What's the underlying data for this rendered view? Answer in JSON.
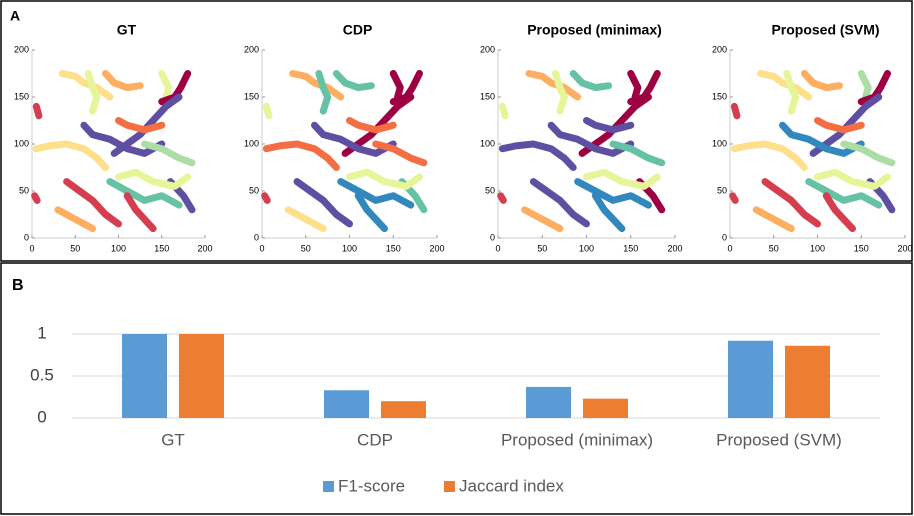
{
  "panel_labels": [
    "A",
    "B"
  ],
  "chart_data": [
    {
      "type": "line",
      "title": "GT",
      "xlim": [
        0,
        200
      ],
      "ylim": [
        0,
        200
      ],
      "xticks": [
        0,
        50,
        100,
        150,
        200
      ],
      "yticks": [
        0,
        50,
        100,
        150,
        200
      ],
      "series": [
        {
          "color": "#fee08b",
          "x": [
            35,
            50,
            60,
            75,
            90
          ],
          "y": [
            175,
            172,
            165,
            160,
            150
          ]
        },
        {
          "color": "#e6f598",
          "x": [
            65,
            70,
            75,
            70
          ],
          "y": [
            175,
            160,
            150,
            135
          ]
        },
        {
          "color": "#fdae61",
          "x": [
            85,
            95,
            110,
            125
          ],
          "y": [
            175,
            165,
            160,
            162
          ]
        },
        {
          "color": "#e6f598",
          "x": [
            150,
            158,
            155
          ],
          "y": [
            175,
            160,
            150
          ]
        },
        {
          "color": "#9e0142",
          "x": [
            180,
            172,
            165,
            150
          ],
          "y": [
            175,
            160,
            150,
            145
          ]
        },
        {
          "color": "#5e4fa2",
          "x": [
            170,
            155,
            140,
            125,
            110,
            95
          ],
          "y": [
            150,
            140,
            125,
            110,
            100,
            90
          ]
        },
        {
          "color": "#f46d43",
          "x": [
            100,
            110,
            130,
            150
          ],
          "y": [
            125,
            120,
            115,
            120
          ]
        },
        {
          "color": "#fee08b",
          "x": [
            5,
            20,
            40,
            60,
            75,
            85
          ],
          "y": [
            95,
            98,
            100,
            95,
            85,
            75
          ]
        },
        {
          "color": "#5e4fa2",
          "x": [
            60,
            70,
            90,
            110,
            130,
            150
          ],
          "y": [
            120,
            110,
            105,
            95,
            90,
            100
          ]
        },
        {
          "color": "#abdda4",
          "x": [
            130,
            150,
            170,
            185
          ],
          "y": [
            100,
            95,
            85,
            80
          ]
        },
        {
          "color": "#d53e4f",
          "x": [
            40,
            55,
            70,
            85,
            100
          ],
          "y": [
            60,
            50,
            40,
            25,
            15
          ]
        },
        {
          "color": "#66c2a5",
          "x": [
            90,
            110,
            130,
            150,
            170
          ],
          "y": [
            60,
            50,
            40,
            45,
            35
          ]
        },
        {
          "color": "#5e4fa2",
          "x": [
            160,
            175,
            185
          ],
          "y": [
            60,
            45,
            30
          ]
        },
        {
          "color": "#d53e4f",
          "x": [
            110,
            120,
            130,
            140
          ],
          "y": [
            45,
            30,
            20,
            10
          ]
        },
        {
          "color": "#d53e4f",
          "x": [
            3,
            6
          ],
          "y": [
            45,
            40
          ]
        },
        {
          "color": "#d53e4f",
          "x": [
            5,
            8
          ],
          "y": [
            140,
            130
          ]
        },
        {
          "color": "#e6f598",
          "x": [
            100,
            120,
            140,
            165,
            180
          ],
          "y": [
            65,
            70,
            60,
            55,
            65
          ]
        },
        {
          "color": "#fdae61",
          "x": [
            30,
            50,
            70
          ],
          "y": [
            30,
            20,
            10
          ]
        }
      ]
    },
    {
      "type": "line",
      "title": "CDP",
      "xlim": [
        0,
        200
      ],
      "ylim": [
        0,
        200
      ],
      "xticks": [
        0,
        50,
        100,
        150,
        200
      ],
      "yticks": [
        0,
        50,
        100,
        150,
        200
      ],
      "series": [
        {
          "color": "#fdae61",
          "x": [
            35,
            50,
            60,
            75,
            90
          ],
          "y": [
            175,
            172,
            165,
            160,
            150
          ]
        },
        {
          "color": "#66c2a5",
          "x": [
            65,
            70,
            75,
            70
          ],
          "y": [
            175,
            160,
            150,
            135
          ]
        },
        {
          "color": "#66c2a5",
          "x": [
            85,
            95,
            110,
            125
          ],
          "y": [
            175,
            165,
            160,
            162
          ]
        },
        {
          "color": "#9e0142",
          "x": [
            150,
            158,
            155
          ],
          "y": [
            175,
            160,
            150
          ]
        },
        {
          "color": "#9e0142",
          "x": [
            180,
            172,
            165,
            150
          ],
          "y": [
            175,
            160,
            150,
            145
          ]
        },
        {
          "color": "#9e0142",
          "x": [
            170,
            155,
            140,
            125,
            110,
            95
          ],
          "y": [
            150,
            140,
            125,
            110,
            100,
            90
          ]
        },
        {
          "color": "#f46d43",
          "x": [
            100,
            110,
            130,
            150
          ],
          "y": [
            125,
            120,
            115,
            120
          ]
        },
        {
          "color": "#f46d43",
          "x": [
            5,
            20,
            40,
            60,
            75,
            85
          ],
          "y": [
            95,
            98,
            100,
            95,
            85,
            75
          ]
        },
        {
          "color": "#5e4fa2",
          "x": [
            60,
            70,
            90,
            110,
            130,
            150
          ],
          "y": [
            120,
            110,
            105,
            95,
            90,
            100
          ]
        },
        {
          "color": "#f46d43",
          "x": [
            130,
            150,
            170,
            185
          ],
          "y": [
            100,
            95,
            85,
            80
          ]
        },
        {
          "color": "#5e4fa2",
          "x": [
            40,
            55,
            70,
            85,
            100
          ],
          "y": [
            60,
            50,
            40,
            25,
            15
          ]
        },
        {
          "color": "#3288bd",
          "x": [
            90,
            110,
            130,
            150,
            170
          ],
          "y": [
            60,
            50,
            40,
            45,
            35
          ]
        },
        {
          "color": "#66c2a5",
          "x": [
            160,
            175,
            185
          ],
          "y": [
            60,
            45,
            30
          ]
        },
        {
          "color": "#3288bd",
          "x": [
            110,
            120,
            130,
            140
          ],
          "y": [
            45,
            30,
            20,
            10
          ]
        },
        {
          "color": "#d53e4f",
          "x": [
            3,
            6
          ],
          "y": [
            45,
            40
          ]
        },
        {
          "color": "#e6f598",
          "x": [
            5,
            8
          ],
          "y": [
            140,
            130
          ]
        },
        {
          "color": "#e6f598",
          "x": [
            100,
            120,
            140,
            165,
            180
          ],
          "y": [
            65,
            70,
            60,
            55,
            65
          ]
        },
        {
          "color": "#fee08b",
          "x": [
            30,
            50,
            70
          ],
          "y": [
            30,
            20,
            10
          ]
        }
      ]
    },
    {
      "type": "line",
      "title": "Proposed (minimax)",
      "xlim": [
        0,
        200
      ],
      "ylim": [
        0,
        200
      ],
      "xticks": [
        0,
        50,
        100,
        150,
        200
      ],
      "yticks": [
        0,
        50,
        100,
        150,
        200
      ],
      "series": [
        {
          "color": "#fdae61",
          "x": [
            35,
            50,
            60,
            75,
            90
          ],
          "y": [
            175,
            172,
            165,
            160,
            150
          ]
        },
        {
          "color": "#e6f598",
          "x": [
            65,
            70,
            75,
            70
          ],
          "y": [
            175,
            160,
            150,
            135
          ]
        },
        {
          "color": "#66c2a5",
          "x": [
            85,
            95,
            110,
            125
          ],
          "y": [
            175,
            165,
            160,
            162
          ]
        },
        {
          "color": "#9e0142",
          "x": [
            150,
            158,
            155
          ],
          "y": [
            175,
            160,
            150
          ]
        },
        {
          "color": "#9e0142",
          "x": [
            180,
            172,
            165,
            150
          ],
          "y": [
            175,
            160,
            150,
            145
          ]
        },
        {
          "color": "#9e0142",
          "x": [
            170,
            155,
            140,
            125,
            110,
            95
          ],
          "y": [
            150,
            140,
            125,
            110,
            100,
            90
          ]
        },
        {
          "color": "#5e4fa2",
          "x": [
            100,
            110,
            130,
            150
          ],
          "y": [
            125,
            120,
            115,
            120
          ]
        },
        {
          "color": "#5e4fa2",
          "x": [
            5,
            20,
            40,
            60,
            75,
            85
          ],
          "y": [
            95,
            98,
            100,
            95,
            85,
            75
          ]
        },
        {
          "color": "#5e4fa2",
          "x": [
            60,
            70,
            90,
            110,
            130,
            150
          ],
          "y": [
            120,
            110,
            105,
            95,
            90,
            100
          ]
        },
        {
          "color": "#66c2a5",
          "x": [
            130,
            150,
            170,
            185
          ],
          "y": [
            100,
            95,
            85,
            80
          ]
        },
        {
          "color": "#5e4fa2",
          "x": [
            40,
            55,
            70,
            85,
            100
          ],
          "y": [
            60,
            50,
            40,
            25,
            15
          ]
        },
        {
          "color": "#3288bd",
          "x": [
            90,
            110,
            130,
            150,
            170
          ],
          "y": [
            60,
            50,
            40,
            45,
            35
          ]
        },
        {
          "color": "#9e0142",
          "x": [
            160,
            175,
            185
          ],
          "y": [
            60,
            45,
            30
          ]
        },
        {
          "color": "#3288bd",
          "x": [
            110,
            120,
            130,
            140
          ],
          "y": [
            45,
            30,
            20,
            10
          ]
        },
        {
          "color": "#d53e4f",
          "x": [
            3,
            6
          ],
          "y": [
            45,
            40
          ]
        },
        {
          "color": "#e6f598",
          "x": [
            5,
            8
          ],
          "y": [
            140,
            130
          ]
        },
        {
          "color": "#e6f598",
          "x": [
            100,
            120,
            140,
            165,
            180
          ],
          "y": [
            65,
            70,
            60,
            55,
            65
          ]
        },
        {
          "color": "#fdae61",
          "x": [
            30,
            50,
            70
          ],
          "y": [
            30,
            20,
            10
          ]
        }
      ]
    },
    {
      "type": "line",
      "title": "Proposed (SVM)",
      "xlim": [
        0,
        200
      ],
      "ylim": [
        0,
        200
      ],
      "xticks": [
        0,
        50,
        100,
        150,
        200
      ],
      "yticks": [
        0,
        50,
        100,
        150,
        200
      ],
      "series": [
        {
          "color": "#fee08b",
          "x": [
            35,
            50,
            60,
            75,
            90
          ],
          "y": [
            175,
            172,
            165,
            160,
            150
          ]
        },
        {
          "color": "#e6f598",
          "x": [
            65,
            70,
            75,
            70
          ],
          "y": [
            175,
            160,
            150,
            135
          ]
        },
        {
          "color": "#fdae61",
          "x": [
            85,
            95,
            110,
            125
          ],
          "y": [
            175,
            165,
            160,
            162
          ]
        },
        {
          "color": "#abdda4",
          "x": [
            150,
            158,
            155
          ],
          "y": [
            175,
            160,
            150
          ]
        },
        {
          "color": "#9e0142",
          "x": [
            180,
            172,
            165,
            150
          ],
          "y": [
            175,
            160,
            150,
            145
          ]
        },
        {
          "color": "#5e4fa2",
          "x": [
            170,
            155,
            140,
            125,
            110,
            95
          ],
          "y": [
            150,
            140,
            125,
            110,
            100,
            90
          ]
        },
        {
          "color": "#f46d43",
          "x": [
            100,
            110,
            130,
            150
          ],
          "y": [
            125,
            120,
            115,
            120
          ]
        },
        {
          "color": "#fee08b",
          "x": [
            5,
            20,
            40,
            60,
            75,
            85
          ],
          "y": [
            95,
            98,
            100,
            95,
            85,
            75
          ]
        },
        {
          "color": "#3288bd",
          "x": [
            60,
            70,
            90,
            110,
            130,
            150
          ],
          "y": [
            120,
            110,
            105,
            95,
            90,
            100
          ]
        },
        {
          "color": "#abdda4",
          "x": [
            130,
            150,
            170,
            185
          ],
          "y": [
            100,
            95,
            85,
            80
          ]
        },
        {
          "color": "#d53e4f",
          "x": [
            40,
            55,
            70,
            85,
            100
          ],
          "y": [
            60,
            50,
            40,
            25,
            15
          ]
        },
        {
          "color": "#66c2a5",
          "x": [
            90,
            110,
            130,
            150,
            170
          ],
          "y": [
            60,
            50,
            40,
            45,
            35
          ]
        },
        {
          "color": "#5e4fa2",
          "x": [
            160,
            175,
            185
          ],
          "y": [
            60,
            45,
            30
          ]
        },
        {
          "color": "#d53e4f",
          "x": [
            110,
            120,
            130,
            140
          ],
          "y": [
            45,
            30,
            20,
            10
          ]
        },
        {
          "color": "#d53e4f",
          "x": [
            3,
            6
          ],
          "y": [
            45,
            40
          ]
        },
        {
          "color": "#d53e4f",
          "x": [
            5,
            8
          ],
          "y": [
            140,
            130
          ]
        },
        {
          "color": "#e6f598",
          "x": [
            100,
            120,
            140,
            165,
            180
          ],
          "y": [
            65,
            70,
            60,
            55,
            65
          ]
        },
        {
          "color": "#fdae61",
          "x": [
            30,
            50,
            70
          ],
          "y": [
            30,
            20,
            10
          ]
        }
      ]
    },
    {
      "type": "bar",
      "categories": [
        "GT",
        "CDP",
        "Proposed (minimax)",
        "Proposed (SVM)"
      ],
      "series": [
        {
          "name": "F1-score",
          "color": "#5b9bd5",
          "values": [
            1,
            0.33,
            0.37,
            0.92
          ]
        },
        {
          "name": "Jaccard index",
          "color": "#ed7d31",
          "values": [
            1,
            0.2,
            0.23,
            0.86
          ]
        }
      ],
      "ylim": [
        0,
        1
      ],
      "yticks": [
        0,
        0.5,
        1
      ],
      "grid": true,
      "legend": "bottom"
    }
  ]
}
